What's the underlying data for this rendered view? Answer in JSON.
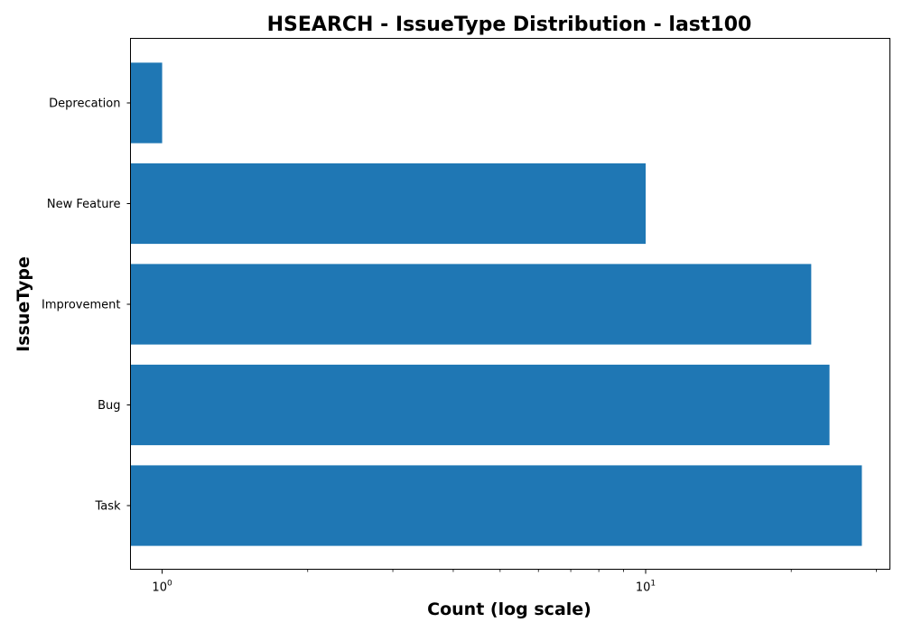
{
  "chart_data": {
    "type": "bar",
    "orientation": "horizontal",
    "title": "HSEARCH - IssueType Distribution - last100",
    "xlabel": "Count (log scale)",
    "ylabel": "IssueType",
    "x_scale": "log",
    "xlim": [
      0.86,
      32
    ],
    "x_ticks": [
      {
        "value": 1,
        "base": "10",
        "exp": "0"
      },
      {
        "value": 10,
        "base": "10",
        "exp": "1"
      }
    ],
    "categories": [
      "Task",
      "Bug",
      "Improvement",
      "New Feature",
      "Deprecation"
    ],
    "values": [
      28,
      24,
      22,
      10,
      1
    ],
    "bar_color": "#1f77b4",
    "grid": false,
    "legend": "none"
  }
}
